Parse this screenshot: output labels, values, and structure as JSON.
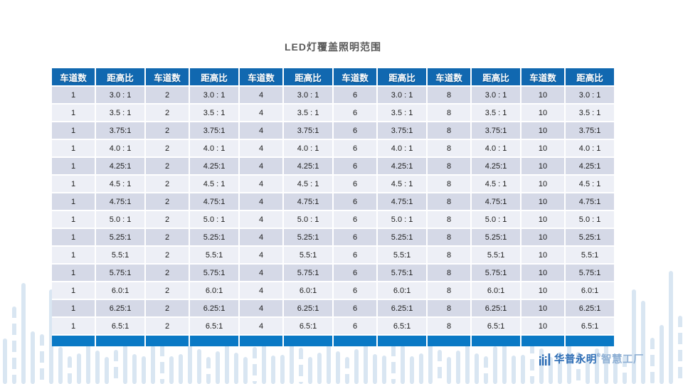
{
  "title": "LED灯覆盖照明范围",
  "chart_data": {
    "type": "table",
    "headers": [
      "车道数",
      "距高比",
      "车道数",
      "距高比",
      "车道数",
      "距高比",
      "车道数",
      "距高比",
      "车道数",
      "距高比",
      "车道数",
      "距高比"
    ],
    "lanes": [
      "1",
      "2",
      "4",
      "6",
      "8",
      "10"
    ],
    "ratios": [
      "3.0 : 1",
      "3.5 : 1",
      "3.75:1",
      "4.0 : 1",
      "4.25:1",
      "4.5 : 1",
      "4.75:1",
      "5.0 : 1",
      "5.25:1",
      "5.5:1",
      "5.75:1",
      "6.0:1",
      "6.25:1",
      "6.5:1"
    ],
    "rows": [
      [
        "1",
        "3.0 : 1",
        "2",
        "3.0 : 1",
        "4",
        "3.0 : 1",
        "6",
        "3.0 : 1",
        "8",
        "3.0 : 1",
        "10",
        "3.0 : 1"
      ],
      [
        "1",
        "3.5 : 1",
        "2",
        "3.5 : 1",
        "4",
        "3.5 : 1",
        "6",
        "3.5 : 1",
        "8",
        "3.5 : 1",
        "10",
        "3.5 : 1"
      ],
      [
        "1",
        "3.75:1",
        "2",
        "3.75:1",
        "4",
        "3.75:1",
        "6",
        "3.75:1",
        "8",
        "3.75:1",
        "10",
        "3.75:1"
      ],
      [
        "1",
        "4.0 : 1",
        "2",
        "4.0 : 1",
        "4",
        "4.0 : 1",
        "6",
        "4.0 : 1",
        "8",
        "4.0 : 1",
        "10",
        "4.0 : 1"
      ],
      [
        "1",
        "4.25:1",
        "2",
        "4.25:1",
        "4",
        "4.25:1",
        "6",
        "4.25:1",
        "8",
        "4.25:1",
        "10",
        "4.25:1"
      ],
      [
        "1",
        "4.5 : 1",
        "2",
        "4.5 : 1",
        "4",
        "4.5 : 1",
        "6",
        "4.5 : 1",
        "8",
        "4.5 : 1",
        "10",
        "4.5 : 1"
      ],
      [
        "1",
        "4.75:1",
        "2",
        "4.75:1",
        "4",
        "4.75:1",
        "6",
        "4.75:1",
        "8",
        "4.75:1",
        "10",
        "4.75:1"
      ],
      [
        "1",
        "5.0 : 1",
        "2",
        "5.0 : 1",
        "4",
        "5.0 : 1",
        "6",
        "5.0 : 1",
        "8",
        "5.0 : 1",
        "10",
        "5.0 : 1"
      ],
      [
        "1",
        "5.25:1",
        "2",
        "5.25:1",
        "4",
        "5.25:1",
        "6",
        "5.25:1",
        "8",
        "5.25:1",
        "10",
        "5.25:1"
      ],
      [
        "1",
        "5.5:1",
        "2",
        "5.5:1",
        "4",
        "5.5:1",
        "6",
        "5.5:1",
        "8",
        "5.5:1",
        "10",
        "5.5:1"
      ],
      [
        "1",
        "5.75:1",
        "2",
        "5.75:1",
        "4",
        "5.75:1",
        "6",
        "5.75:1",
        "8",
        "5.75:1",
        "10",
        "5.75:1"
      ],
      [
        "1",
        "6.0:1",
        "2",
        "6.0:1",
        "4",
        "6.0:1",
        "6",
        "6.0:1",
        "8",
        "6.0:1",
        "10",
        "6.0:1"
      ],
      [
        "1",
        "6.25:1",
        "2",
        "6.25:1",
        "4",
        "6.25:1",
        "6",
        "6.25:1",
        "8",
        "6.25:1",
        "10",
        "6.25:1"
      ],
      [
        "1",
        "6.5:1",
        "2",
        "6.5:1",
        "4",
        "6.5:1",
        "6",
        "6.5:1",
        "8",
        "6.5:1",
        "10",
        "6.5:1"
      ]
    ]
  },
  "brand": {
    "name": "华普永明",
    "reg": "®",
    "suffix": "智慧工厂"
  },
  "colors": {
    "header_blue": "#1168b0",
    "footer_blue": "#0a79c5",
    "row_odd": "#d5d9e7",
    "row_even": "#edeff6",
    "deco_light_blue": "#d9e6f2",
    "brand_blue": "#2d6db5",
    "brand_light_blue": "#8fb0d4",
    "title_gray": "#595959"
  }
}
